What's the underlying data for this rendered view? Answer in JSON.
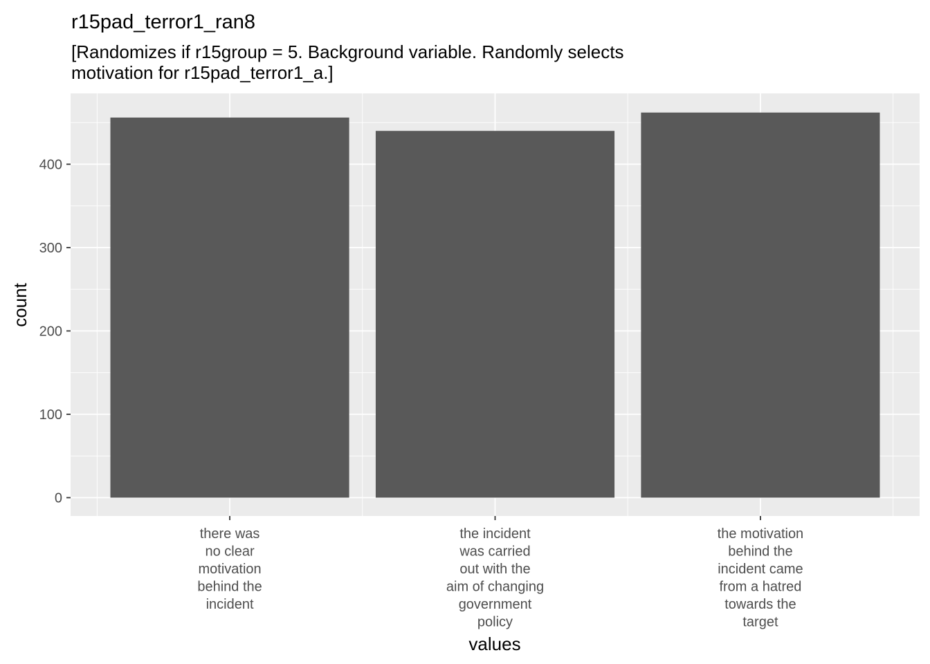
{
  "chart_data": {
    "type": "bar",
    "title": "r15pad_terror1_ran8",
    "subtitle": [
      "[Randomizes if r15group = 5. Background variable. Randomly selects",
      "motivation for r15pad_terror1_a.]"
    ],
    "categories": [
      [
        "there was",
        "no clear",
        "motivation",
        "behind the",
        "incident"
      ],
      [
        "the incident",
        "was carried",
        "out with the",
        "aim of changing",
        "government",
        "policy"
      ],
      [
        "the motivation",
        "behind the",
        "incident came",
        "from a hatred",
        "towards the",
        "target"
      ]
    ],
    "values": [
      456,
      440,
      462
    ],
    "xlabel": "values",
    "ylabel": "count",
    "ylim": [
      -22,
      485
    ],
    "yticks": [
      0,
      100,
      200,
      300,
      400
    ],
    "grid": true,
    "colors": {
      "bar": "#595959",
      "panel": "#ebebeb",
      "grid": "#ffffff",
      "tick": "#333333"
    }
  }
}
